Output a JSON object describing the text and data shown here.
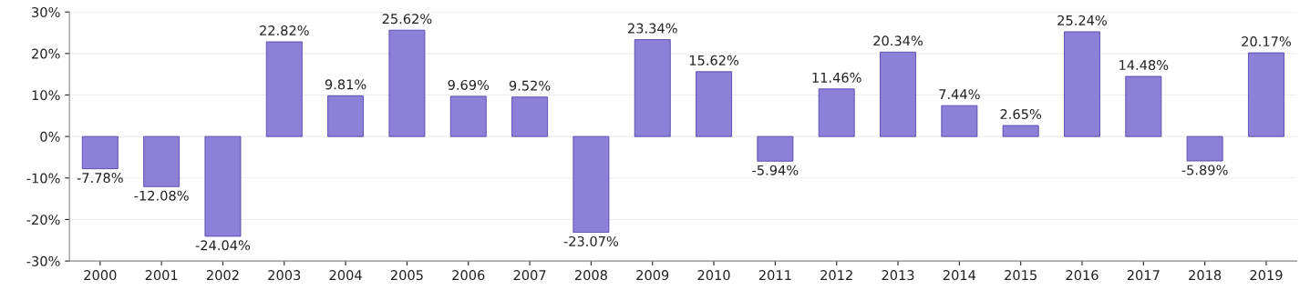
{
  "chart_data": {
    "type": "bar",
    "categories": [
      "2000",
      "2001",
      "2002",
      "2003",
      "2004",
      "2005",
      "2006",
      "2007",
      "2008",
      "2009",
      "2010",
      "2011",
      "2012",
      "2013",
      "2014",
      "2015",
      "2016",
      "2017",
      "2018",
      "2019"
    ],
    "values": [
      -7.78,
      -12.08,
      -24.04,
      22.82,
      9.81,
      25.62,
      9.69,
      9.52,
      -23.07,
      23.34,
      15.62,
      -5.94,
      11.46,
      20.34,
      7.44,
      2.65,
      25.24,
      14.48,
      -5.89,
      20.17
    ],
    "value_labels": [
      "-7.78%",
      "-12.08%",
      "-24.04%",
      "22.82%",
      "9.81%",
      "25.62%",
      "9.69%",
      "9.52%",
      "-23.07%",
      "23.34%",
      "15.62%",
      "-5.94%",
      "11.46%",
      "20.34%",
      "7.44%",
      "2.65%",
      "25.24%",
      "14.48%",
      "-5.89%",
      "20.17%"
    ],
    "color": "#8c80d8",
    "ylim": [
      -30,
      30
    ],
    "yticks": [
      {
        "value": -30,
        "label": "-30%"
      },
      {
        "value": -20,
        "label": "-20%"
      },
      {
        "value": -10,
        "label": "-10%"
      },
      {
        "value": 0,
        "label": "0%"
      },
      {
        "value": 10,
        "label": "10%"
      },
      {
        "value": 20,
        "label": "20%"
      },
      {
        "value": 30,
        "label": "30%"
      }
    ],
    "grid": "y"
  }
}
